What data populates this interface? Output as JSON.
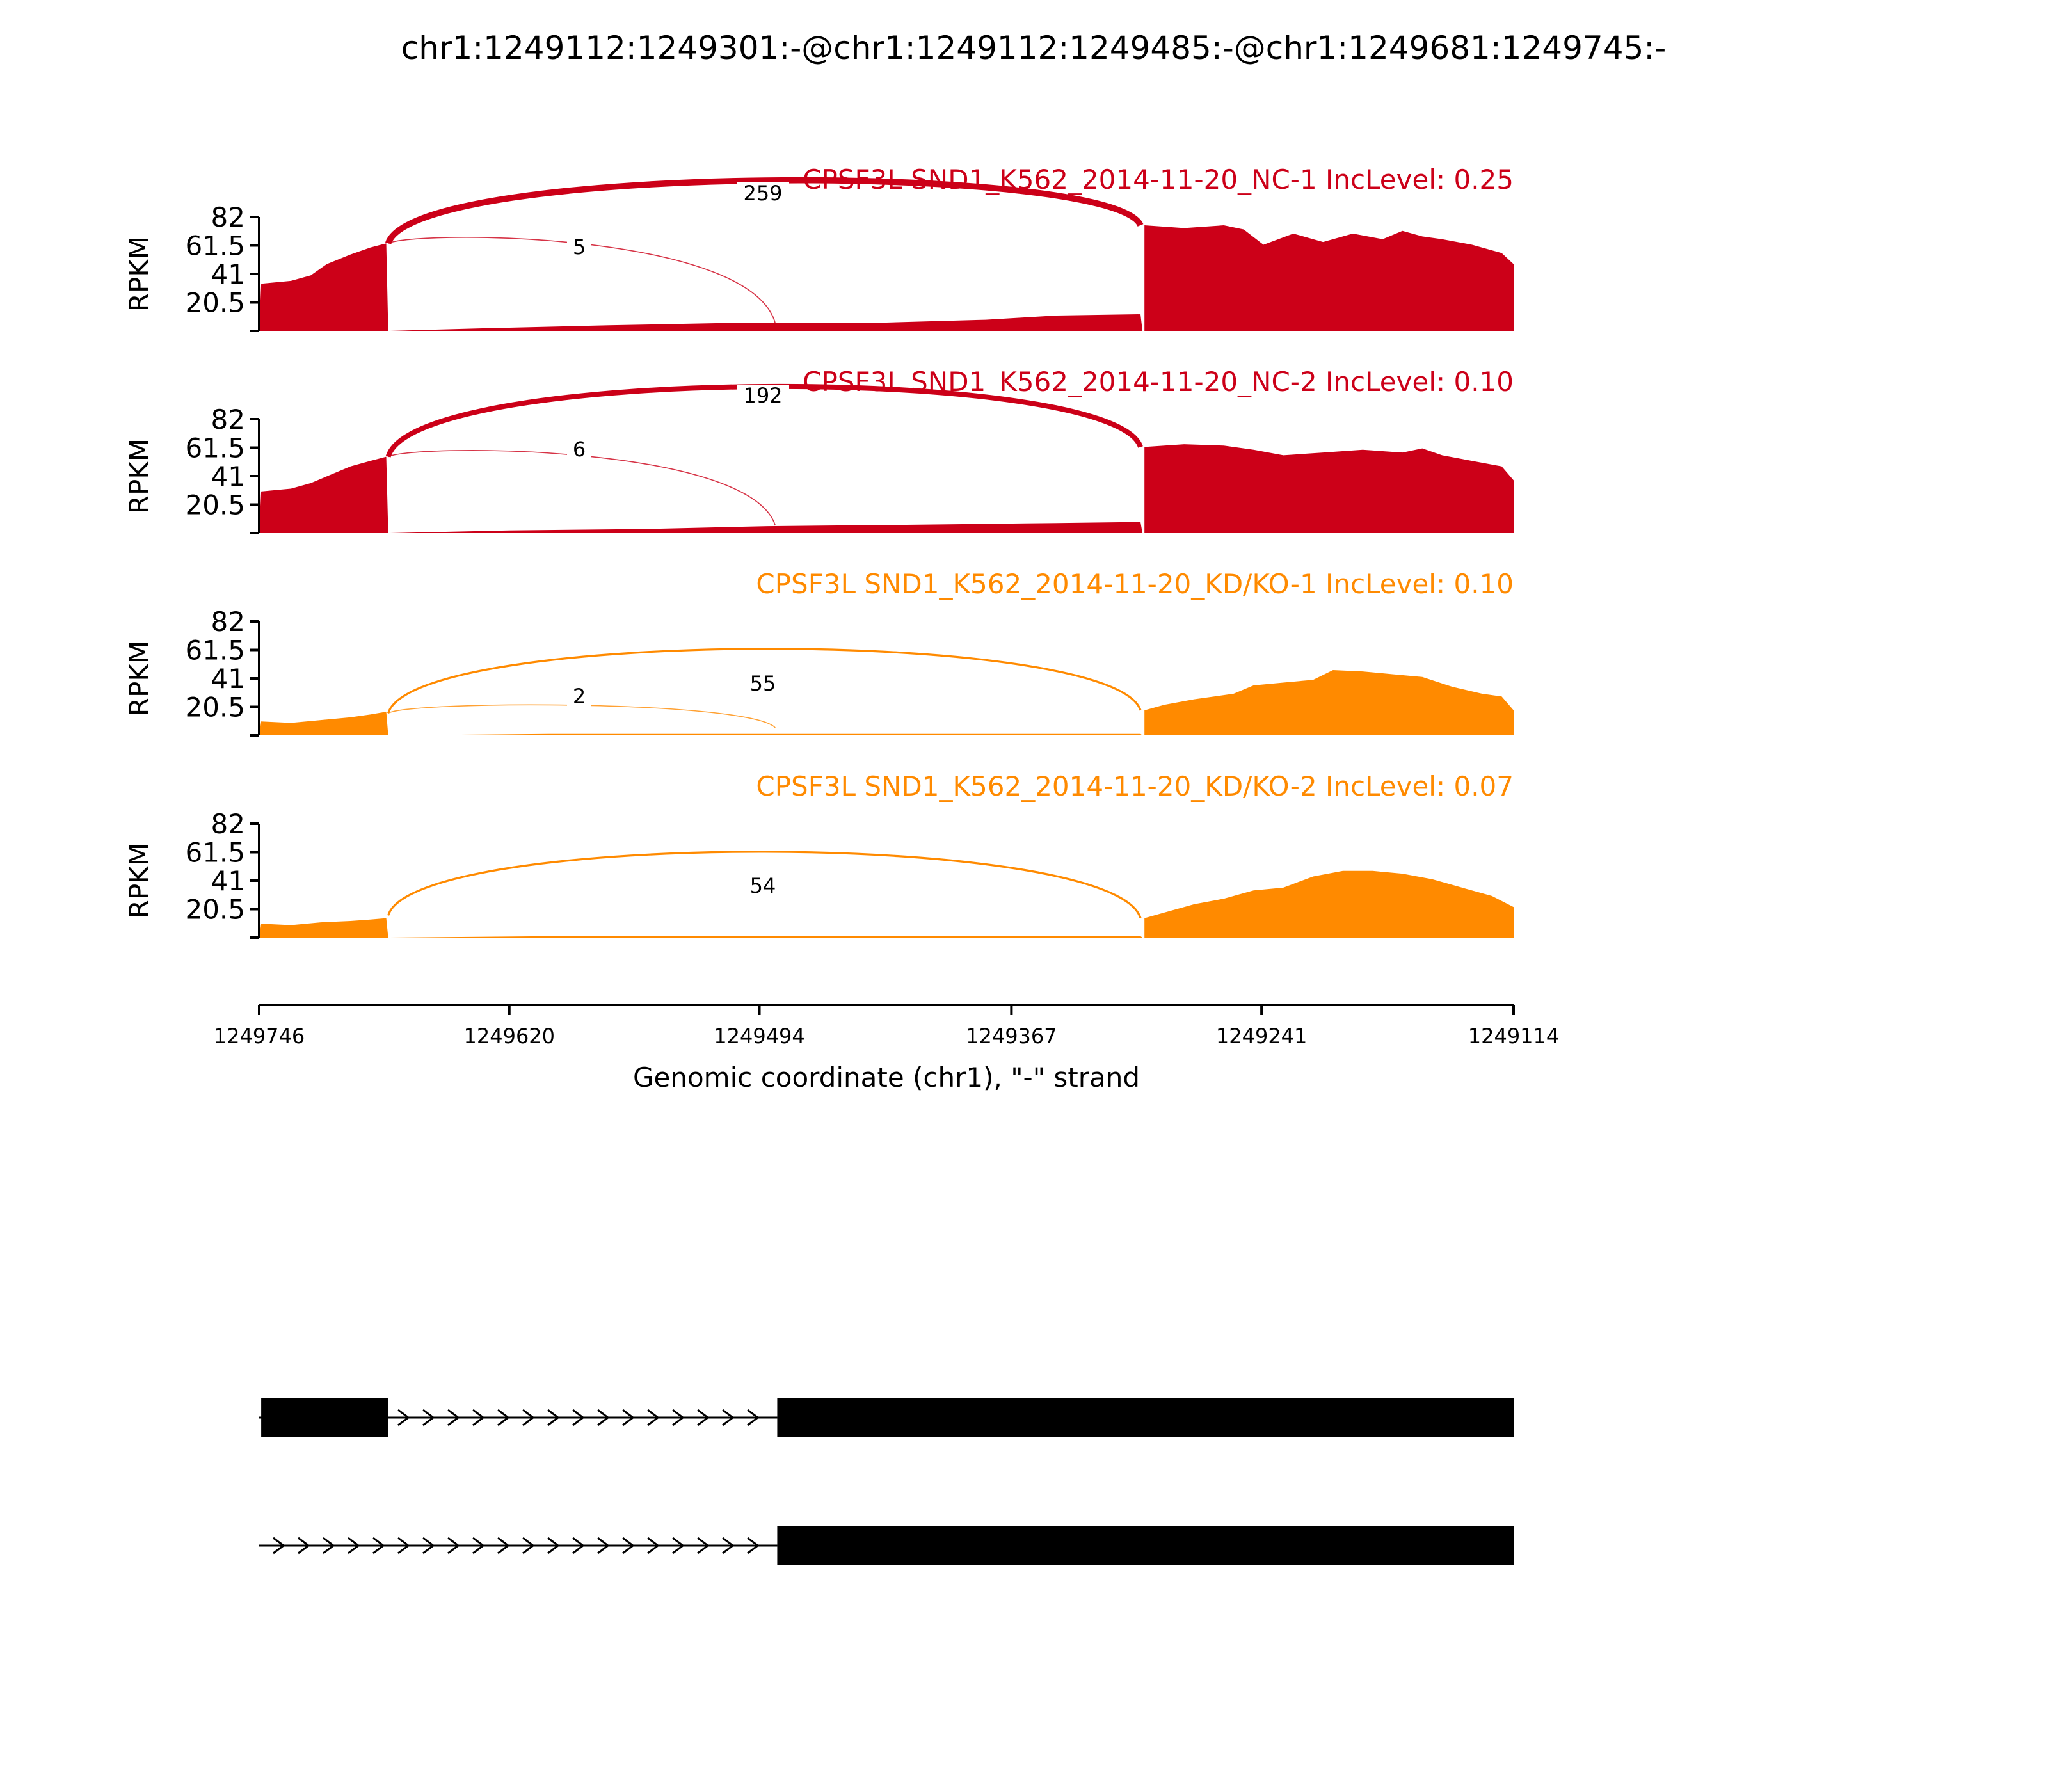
{
  "title": "chr1:1249112:1249301:-@chr1:1249112:1249485:-@chr1:1249681:1249745:-",
  "chart_data": {
    "type": "area",
    "ylabel": "RPKM",
    "ylim": [
      0,
      82
    ],
    "yticks": [
      "82",
      "61.5",
      "41",
      "20.5"
    ],
    "xlabel": "Genomic coordinate (chr1), \"-\" strand",
    "xlim": [
      1249746,
      1249114
    ],
    "xticks": [
      "1249746",
      "1249620",
      "1249494",
      "1249367",
      "1249241",
      "1249114"
    ],
    "colors": {
      "nc": "#cc0018",
      "kd": "#ff8a00"
    },
    "panels": [
      {
        "label": "CPSF3L SND1_K562_2014-11-20_NC-1 IncLevel: 0.25",
        "group": "nc",
        "coverage": [
          [
            1249746,
            0
          ],
          [
            1249745,
            34
          ],
          [
            1249730,
            36
          ],
          [
            1249720,
            40
          ],
          [
            1249712,
            48
          ],
          [
            1249700,
            55
          ],
          [
            1249690,
            60
          ],
          [
            1249682,
            63
          ],
          [
            1249681,
            0
          ],
          [
            1249680,
            0
          ],
          [
            1249630,
            2
          ],
          [
            1249570,
            4
          ],
          [
            1249500,
            6
          ],
          [
            1249430,
            6
          ],
          [
            1249380,
            8
          ],
          [
            1249345,
            11
          ],
          [
            1249302,
            12
          ],
          [
            1249301,
            0
          ],
          [
            1249300,
            0
          ],
          [
            1249300,
            76
          ],
          [
            1249280,
            74
          ],
          [
            1249260,
            76
          ],
          [
            1249250,
            73
          ],
          [
            1249240,
            62
          ],
          [
            1249225,
            70
          ],
          [
            1249210,
            64
          ],
          [
            1249195,
            70
          ],
          [
            1249180,
            66
          ],
          [
            1249170,
            72
          ],
          [
            1249160,
            68
          ],
          [
            1249150,
            66
          ],
          [
            1249135,
            62
          ],
          [
            1249120,
            56
          ],
          [
            1249114,
            48
          ],
          [
            1249114,
            0
          ]
        ],
        "junctions": [
          {
            "label": "259",
            "from": 1249681,
            "to": 1249302,
            "side": "top",
            "weight": 6,
            "height": 100
          },
          {
            "label": "5",
            "from": 1249681,
            "to": 1249486,
            "side": "top",
            "weight": 1,
            "height": 0
          }
        ]
      },
      {
        "label": "CPSF3L SND1_K562_2014-11-20_NC-2 IncLevel: 0.10",
        "group": "nc",
        "coverage": [
          [
            1249746,
            0
          ],
          [
            1249745,
            30
          ],
          [
            1249730,
            32
          ],
          [
            1249720,
            36
          ],
          [
            1249710,
            42
          ],
          [
            1249700,
            48
          ],
          [
            1249690,
            52
          ],
          [
            1249682,
            55
          ],
          [
            1249681,
            0
          ],
          [
            1249680,
            0
          ],
          [
            1249620,
            2
          ],
          [
            1249550,
            3
          ],
          [
            1249490,
            5
          ],
          [
            1249420,
            6
          ],
          [
            1249360,
            7
          ],
          [
            1249302,
            8
          ],
          [
            1249301,
            0
          ],
          [
            1249300,
            0
          ],
          [
            1249300,
            62
          ],
          [
            1249280,
            64
          ],
          [
            1249260,
            63
          ],
          [
            1249245,
            60
          ],
          [
            1249230,
            56
          ],
          [
            1249210,
            58
          ],
          [
            1249190,
            60
          ],
          [
            1249170,
            58
          ],
          [
            1249160,
            61
          ],
          [
            1249150,
            56
          ],
          [
            1249135,
            52
          ],
          [
            1249120,
            48
          ],
          [
            1249114,
            38
          ],
          [
            1249114,
            0
          ]
        ],
        "junctions": [
          {
            "label": "192",
            "from": 1249681,
            "to": 1249302,
            "side": "top",
            "weight": 5,
            "height": 100
          },
          {
            "label": "6",
            "from": 1249681,
            "to": 1249486,
            "side": "top",
            "weight": 1,
            "height": 0
          }
        ]
      },
      {
        "label": "CPSF3L SND1_K562_2014-11-20_KD/KO-1 IncLevel: 0.10",
        "group": "kd",
        "coverage": [
          [
            1249746,
            0
          ],
          [
            1249745,
            10
          ],
          [
            1249730,
            9
          ],
          [
            1249715,
            11
          ],
          [
            1249700,
            13
          ],
          [
            1249690,
            15
          ],
          [
            1249682,
            17
          ],
          [
            1249681,
            0
          ],
          [
            1249680,
            0
          ],
          [
            1249600,
            1
          ],
          [
            1249500,
            1
          ],
          [
            1249400,
            1
          ],
          [
            1249302,
            1
          ],
          [
            1249301,
            0
          ],
          [
            1249300,
            0
          ],
          [
            1249300,
            18
          ],
          [
            1249290,
            22
          ],
          [
            1249275,
            26
          ],
          [
            1249255,
            30
          ],
          [
            1249245,
            36
          ],
          [
            1249230,
            38
          ],
          [
            1249215,
            40
          ],
          [
            1249205,
            47
          ],
          [
            1249190,
            46
          ],
          [
            1249175,
            44
          ],
          [
            1249160,
            42
          ],
          [
            1249145,
            35
          ],
          [
            1249130,
            30
          ],
          [
            1249120,
            28
          ],
          [
            1249114,
            18
          ],
          [
            1249114,
            0
          ]
        ],
        "junctions": [
          {
            "label": "55",
            "from": 1249681,
            "to": 1249302,
            "side": "top",
            "weight": 2,
            "height": 35
          },
          {
            "label": "2",
            "from": 1249681,
            "to": 1249486,
            "side": "top",
            "weight": 1,
            "height": 0
          }
        ]
      },
      {
        "label": "CPSF3L SND1_K562_2014-11-20_KD/KO-2 IncLevel: 0.07",
        "group": "kd",
        "coverage": [
          [
            1249746,
            0
          ],
          [
            1249745,
            10
          ],
          [
            1249730,
            9
          ],
          [
            1249715,
            11
          ],
          [
            1249700,
            12
          ],
          [
            1249690,
            13
          ],
          [
            1249682,
            14
          ],
          [
            1249681,
            0
          ],
          [
            1249680,
            0
          ],
          [
            1249600,
            1
          ],
          [
            1249500,
            1
          ],
          [
            1249400,
            1
          ],
          [
            1249302,
            1
          ],
          [
            1249301,
            0
          ],
          [
            1249300,
            0
          ],
          [
            1249300,
            14
          ],
          [
            1249290,
            18
          ],
          [
            1249275,
            24
          ],
          [
            1249260,
            28
          ],
          [
            1249245,
            34
          ],
          [
            1249230,
            36
          ],
          [
            1249215,
            44
          ],
          [
            1249200,
            48
          ],
          [
            1249185,
            48
          ],
          [
            1249170,
            46
          ],
          [
            1249155,
            42
          ],
          [
            1249140,
            36
          ],
          [
            1249125,
            30
          ],
          [
            1249114,
            22
          ],
          [
            1249114,
            0
          ]
        ],
        "junctions": [
          {
            "label": "54",
            "from": 1249681,
            "to": 1249302,
            "side": "top",
            "weight": 2,
            "height": 35
          }
        ]
      }
    ],
    "isoforms": [
      {
        "exons": [
          [
            1249745,
            1249681
          ],
          [
            1249485,
            1249114
          ]
        ],
        "intron": [
          1249746,
          1249485
        ]
      },
      {
        "exons": [
          [
            1249485,
            1249114
          ]
        ],
        "intron": [
          1249746,
          1249485
        ]
      }
    ]
  }
}
